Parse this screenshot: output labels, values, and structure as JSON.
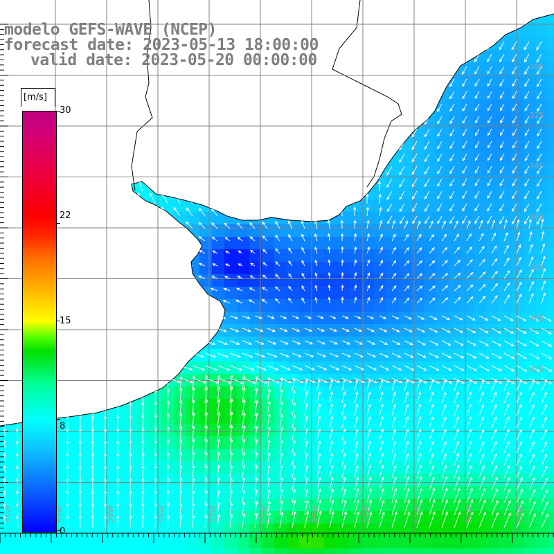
{
  "title": {
    "line1": "modelo GEFS-WAVE (NCEP)",
    "line2": "forecast date: 2023-05-13 18:00:00",
    "line3": "valid date: 2023-05-20 00:00:00"
  },
  "colorbar": {
    "unit": "[m/s]",
    "ticks": [
      "30",
      "22",
      "15",
      "8",
      "0"
    ],
    "tick_values": [
      30,
      22,
      15,
      8,
      0
    ],
    "min": 0,
    "max": 30
  },
  "map": {
    "lat_labels": [
      "30S",
      "32S",
      "34S",
      "36S",
      "38S",
      "40S",
      "42S"
    ],
    "lon_labels": [
      "61W",
      "60W",
      "59W",
      "58W",
      "57W",
      "56W",
      "55W",
      "54W",
      "53W",
      "52W",
      "51W"
    ],
    "colors": {
      "land": "#ffffff",
      "coast": "#000000",
      "grid": "#808080",
      "low_wind": "#0000ff",
      "mid_wind": "#00ffff",
      "high_wind": "#00e000",
      "arrow": "#ffffff"
    }
  }
}
